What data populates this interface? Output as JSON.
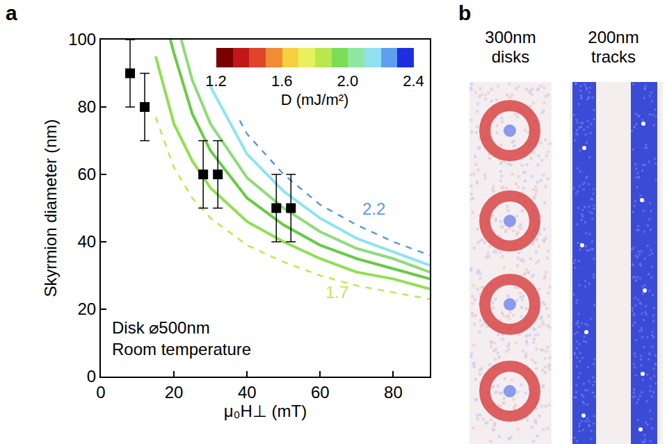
{
  "chart_data": {
    "type": "scatter",
    "panel": "a",
    "xlabel": "μ₀H⊥ (mT)",
    "ylabel": "Skyrmion diameter (nm)",
    "xlim": [
      0,
      90
    ],
    "xticks": [
      0,
      20,
      40,
      60,
      80
    ],
    "ylim": [
      0,
      100
    ],
    "yticks": [
      0,
      20,
      40,
      60,
      80,
      100
    ],
    "grid": false,
    "notes": [
      "Disk ⌀500nm",
      "Room temperature"
    ],
    "colorbar": {
      "title": "D (mJ/m²)",
      "range": [
        1.2,
        2.4
      ],
      "ticks": [
        1.2,
        1.6,
        {
          "value": 2,
          "label": "2.0"
        },
        2.4
      ]
    },
    "series": [
      {
        "type": "line",
        "line_style": "dashed",
        "color": "#c2e64c",
        "label": "1.7",
        "x": [
          15,
          20,
          25,
          30,
          40,
          50,
          60,
          70,
          80,
          90
        ],
        "values": [
          77,
          62,
          53,
          47,
          39,
          34,
          30,
          27,
          25,
          23
        ]
      },
      {
        "type": "line",
        "line_style": "solid",
        "color": "#8fe04e",
        "x": [
          15,
          20,
          25,
          30,
          40,
          50,
          60,
          70,
          80,
          90
        ],
        "values": [
          95,
          75,
          64,
          56,
          46,
          40,
          35,
          31,
          29,
          26
        ]
      },
      {
        "type": "line",
        "line_style": "solid",
        "color": "#66cc44",
        "x": [
          19,
          20,
          25,
          30,
          40,
          50,
          60,
          70,
          80,
          90
        ],
        "values": [
          100,
          96,
          78,
          67,
          53,
          45,
          39,
          35,
          32,
          29
        ]
      },
      {
        "type": "line",
        "line_style": "solid",
        "color": "#8cdc78",
        "x": [
          22,
          25,
          30,
          40,
          50,
          60,
          70,
          80,
          90
        ],
        "values": [
          100,
          88,
          75,
          59,
          50,
          43,
          38,
          35,
          31
        ]
      },
      {
        "type": "line",
        "line_style": "solid",
        "color": "#8ce4f2",
        "x": [
          30,
          40,
          50,
          60,
          70,
          80,
          90
        ],
        "values": [
          86,
          66,
          55,
          47,
          41,
          37,
          33
        ]
      },
      {
        "type": "line",
        "line_style": "dashed",
        "color": "#5a9ae0",
        "label": "2.2",
        "x": [
          38,
          40,
          50,
          60,
          70,
          80,
          90
        ],
        "values": [
          76,
          72,
          60,
          51,
          45,
          40,
          36
        ]
      },
      {
        "type": "scatter",
        "marker": "square",
        "color": "#000000",
        "x": [
          8,
          12,
          28,
          32,
          48,
          52
        ],
        "values": [
          90,
          80,
          60,
          60,
          50,
          50
        ],
        "error": [
          10,
          10,
          10,
          10,
          10,
          10
        ]
      }
    ]
  },
  "panel_b": {
    "label": "b",
    "columns": [
      {
        "title": "300nm disks"
      },
      {
        "title": "200nm tracks"
      }
    ]
  }
}
